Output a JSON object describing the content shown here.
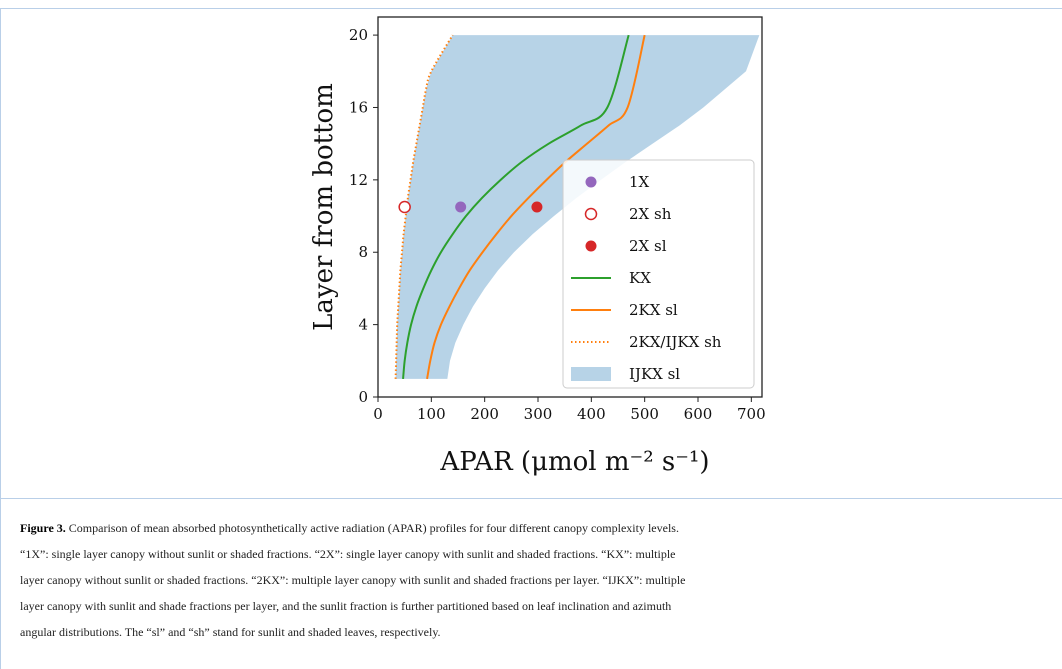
{
  "chart_data": {
    "type": "line",
    "title": "",
    "xlabel": "APAR (μmol m⁻² s⁻¹)",
    "ylabel": "Layer from bottom",
    "xlim": [
      0,
      720
    ],
    "ylim": [
      0,
      21
    ],
    "xticks": [
      0,
      100,
      200,
      300,
      400,
      500,
      600,
      700
    ],
    "yticks": [
      0,
      4,
      8,
      12,
      16,
      20
    ],
    "legend_placement": "lower-right",
    "series": [
      {
        "name": "1X",
        "kind": "point",
        "marker": "filled-circle",
        "color": "#9467bd",
        "x": [
          155
        ],
        "y": [
          10.5
        ]
      },
      {
        "name": "2X sh",
        "kind": "point",
        "marker": "open-circle",
        "color": "#d62728",
        "x": [
          50
        ],
        "y": [
          10.5
        ]
      },
      {
        "name": "2X sl",
        "kind": "point",
        "marker": "filled-circle",
        "color": "#d62728",
        "x": [
          298
        ],
        "y": [
          10.5
        ]
      },
      {
        "name": "KX",
        "kind": "line",
        "color": "#2ca02c",
        "x": [
          47,
          50,
          55,
          62,
          72,
          85,
          100,
          118,
          140,
          165,
          195,
          230,
          270,
          320,
          380,
          430,
          470
        ],
        "y": [
          1,
          2,
          3,
          4,
          5,
          6,
          7,
          8,
          9,
          10,
          11,
          12,
          13,
          14,
          15,
          16,
          20
        ]
      },
      {
        "name": "2KX sl",
        "kind": "line",
        "color": "#ff7f0e",
        "x": [
          92,
          98,
          106,
          118,
          134,
          152,
          172,
          196,
          222,
          250,
          282,
          316,
          352,
          392,
          432,
          468,
          500
        ],
        "y": [
          1,
          2,
          3,
          4,
          5,
          6,
          7,
          8,
          9,
          10,
          11,
          12,
          13,
          14,
          15,
          16,
          20
        ]
      },
      {
        "name": "2KX/IJKX sh",
        "kind": "dotted-line",
        "color": "#ff7f0e",
        "x": [
          33,
          34,
          35,
          36,
          38,
          40,
          42,
          45,
          48,
          52,
          56,
          61,
          66,
          72,
          78,
          84,
          90,
          100,
          140
        ],
        "y": [
          1,
          2,
          3,
          4,
          5,
          6,
          7,
          8,
          9,
          10,
          11,
          12,
          13,
          14,
          15,
          16,
          17,
          18,
          20
        ]
      },
      {
        "name": "IJKX sl",
        "kind": "band",
        "color": "#1f77b4",
        "alpha": 0.32,
        "x_low": [
          33,
          34,
          35,
          36,
          38,
          40,
          42,
          45,
          48,
          52,
          56,
          61,
          66,
          72,
          78,
          84,
          90,
          100,
          140
        ],
        "x_high": [
          130,
          135,
          145,
          160,
          178,
          200,
          225,
          255,
          290,
          330,
          372,
          418,
          465,
          515,
          565,
          610,
          650,
          690,
          715
        ],
        "y": [
          1,
          2,
          3,
          4,
          5,
          6,
          7,
          8,
          9,
          10,
          11,
          12,
          13,
          14,
          15,
          16,
          17,
          18,
          20
        ]
      }
    ]
  },
  "caption": {
    "label": "Figure 3.",
    "lines": [
      "Comparison of mean absorbed photosynthetically active radiation (APAR) profiles for four different canopy complexity levels.",
      "“1X”: single layer canopy without sunlit or shaded fractions. “2X”: single layer canopy with sunlit and shaded fractions. “KX”: multiple",
      "layer canopy without sunlit or shaded fractions. “2KX”: multiple layer canopy with sunlit and shaded fractions per layer. “IJKX”: multiple",
      "layer canopy with sunlit and shade fractions per layer, and the sunlit fraction is further partitioned based on leaf inclination and azimuth",
      "angular distributions. The “sl” and “sh” stand for sunlit and shaded leaves, respectively."
    ]
  }
}
